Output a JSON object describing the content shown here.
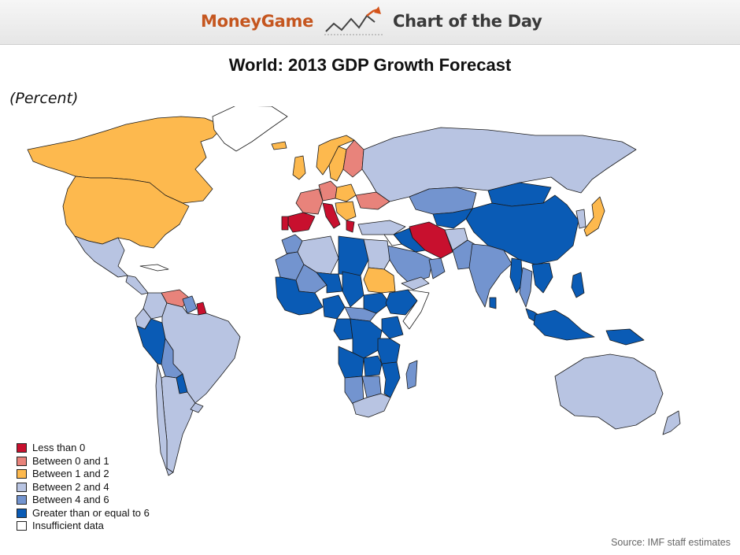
{
  "header": {
    "brand": "MoneyGame",
    "section": "Chart of the Day",
    "logo_icon": "rising-line-chart-icon"
  },
  "map": {
    "title": "World: 2013 GDP Growth Forecast",
    "unit": "(Percent)",
    "source": "Source: IMF staff estimates",
    "legend": [
      {
        "label": "Less than 0",
        "color": "#c8102e"
      },
      {
        "label": "Between 0 and 1",
        "color": "#e8837b"
      },
      {
        "label": "Between 1 and 2",
        "color": "#fdb94e"
      },
      {
        "label": "Between 2 and 4",
        "color": "#b8c4e2"
      },
      {
        "label": "Between 4 and 6",
        "color": "#7394cf"
      },
      {
        "label": "Greater than or equal to 6",
        "color": "#0a5bb5"
      },
      {
        "label": "Insufficient data",
        "color": "#ffffff"
      }
    ],
    "regions": [
      {
        "name": "Canada",
        "category": 2
      },
      {
        "name": "United States",
        "category": 2
      },
      {
        "name": "Mexico",
        "category": 3
      },
      {
        "name": "Central America",
        "category": 3
      },
      {
        "name": "Cuba",
        "category": 6
      },
      {
        "name": "Colombia",
        "category": 3
      },
      {
        "name": "Venezuela",
        "category": 1
      },
      {
        "name": "Guyana",
        "category": 4
      },
      {
        "name": "Suriname",
        "category": 0
      },
      {
        "name": "Ecuador",
        "category": 3
      },
      {
        "name": "Peru",
        "category": 5
      },
      {
        "name": "Brazil",
        "category": 3
      },
      {
        "name": "Bolivia",
        "category": 4
      },
      {
        "name": "Paraguay",
        "category": 5
      },
      {
        "name": "Argentina",
        "category": 3
      },
      {
        "name": "Chile",
        "category": 3
      },
      {
        "name": "Uruguay",
        "category": 3
      },
      {
        "name": "Greenland",
        "category": 6
      },
      {
        "name": "Iceland",
        "category": 2
      },
      {
        "name": "United Kingdom",
        "category": 2
      },
      {
        "name": "Norway",
        "category": 2
      },
      {
        "name": "Sweden",
        "category": 2
      },
      {
        "name": "Finland",
        "category": 1
      },
      {
        "name": "Germany",
        "category": 1
      },
      {
        "name": "Poland",
        "category": 2
      },
      {
        "name": "Italy",
        "category": 0
      },
      {
        "name": "France",
        "category": 1
      },
      {
        "name": "Spain",
        "category": 0
      },
      {
        "name": "Portugal",
        "category": 0
      },
      {
        "name": "Greece",
        "category": 0
      },
      {
        "name": "Ukraine",
        "category": 1
      },
      {
        "name": "Balkans",
        "category": 2
      },
      {
        "name": "Turkey",
        "category": 3
      },
      {
        "name": "Russia",
        "category": 3
      },
      {
        "name": "Kazakhstan",
        "category": 4
      },
      {
        "name": "Mongolia",
        "category": 5
      },
      {
        "name": "China",
        "category": 5
      },
      {
        "name": "Japan",
        "category": 2
      },
      {
        "name": "Korea",
        "category": 3
      },
      {
        "name": "Central Asia",
        "category": 5
      },
      {
        "name": "Iran",
        "category": 0
      },
      {
        "name": "Iraq",
        "category": 5
      },
      {
        "name": "Syria",
        "category": 6
      },
      {
        "name": "Saudi Arabia",
        "category": 4
      },
      {
        "name": "Yemen",
        "category": 3
      },
      {
        "name": "Oman",
        "category": 4
      },
      {
        "name": "Afghanistan",
        "category": 3
      },
      {
        "name": "Pakistan",
        "category": 4
      },
      {
        "name": "India",
        "category": 4
      },
      {
        "name": "Sri Lanka",
        "category": 5
      },
      {
        "name": "Myanmar",
        "category": 5
      },
      {
        "name": "Thailand",
        "category": 4
      },
      {
        "name": "Indochina",
        "category": 5
      },
      {
        "name": "Philippines",
        "category": 5
      },
      {
        "name": "Malaysia",
        "category": 5
      },
      {
        "name": "Indonesia",
        "category": 5
      },
      {
        "name": "Papua New Guinea",
        "category": 5
      },
      {
        "name": "Australia",
        "category": 3
      },
      {
        "name": "New Zealand",
        "category": 3
      },
      {
        "name": "Morocco",
        "category": 4
      },
      {
        "name": "Algeria",
        "category": 3
      },
      {
        "name": "Libya",
        "category": 5
      },
      {
        "name": "Egypt",
        "category": 3
      },
      {
        "name": "Mauritania",
        "category": 4
      },
      {
        "name": "Mali",
        "category": 4
      },
      {
        "name": "Niger",
        "category": 5
      },
      {
        "name": "Chad",
        "category": 5
      },
      {
        "name": "Sudan",
        "category": 2
      },
      {
        "name": "South Sudan",
        "category": 5
      },
      {
        "name": "Ethiopia",
        "category": 5
      },
      {
        "name": "Somalia",
        "category": 6
      },
      {
        "name": "West Africa",
        "category": 5
      },
      {
        "name": "Nigeria",
        "category": 5
      },
      {
        "name": "Central African Republic",
        "category": 4
      },
      {
        "name": "Congo",
        "category": 5
      },
      {
        "name": "DR Congo",
        "category": 5
      },
      {
        "name": "Kenya",
        "category": 5
      },
      {
        "name": "Tanzania",
        "category": 5
      },
      {
        "name": "Angola",
        "category": 5
      },
      {
        "name": "Zambia",
        "category": 5
      },
      {
        "name": "Mozambique",
        "category": 5
      },
      {
        "name": "Namibia",
        "category": 4
      },
      {
        "name": "Botswana",
        "category": 4
      },
      {
        "name": "South Africa",
        "category": 3
      },
      {
        "name": "Madagascar",
        "category": 4
      }
    ]
  }
}
